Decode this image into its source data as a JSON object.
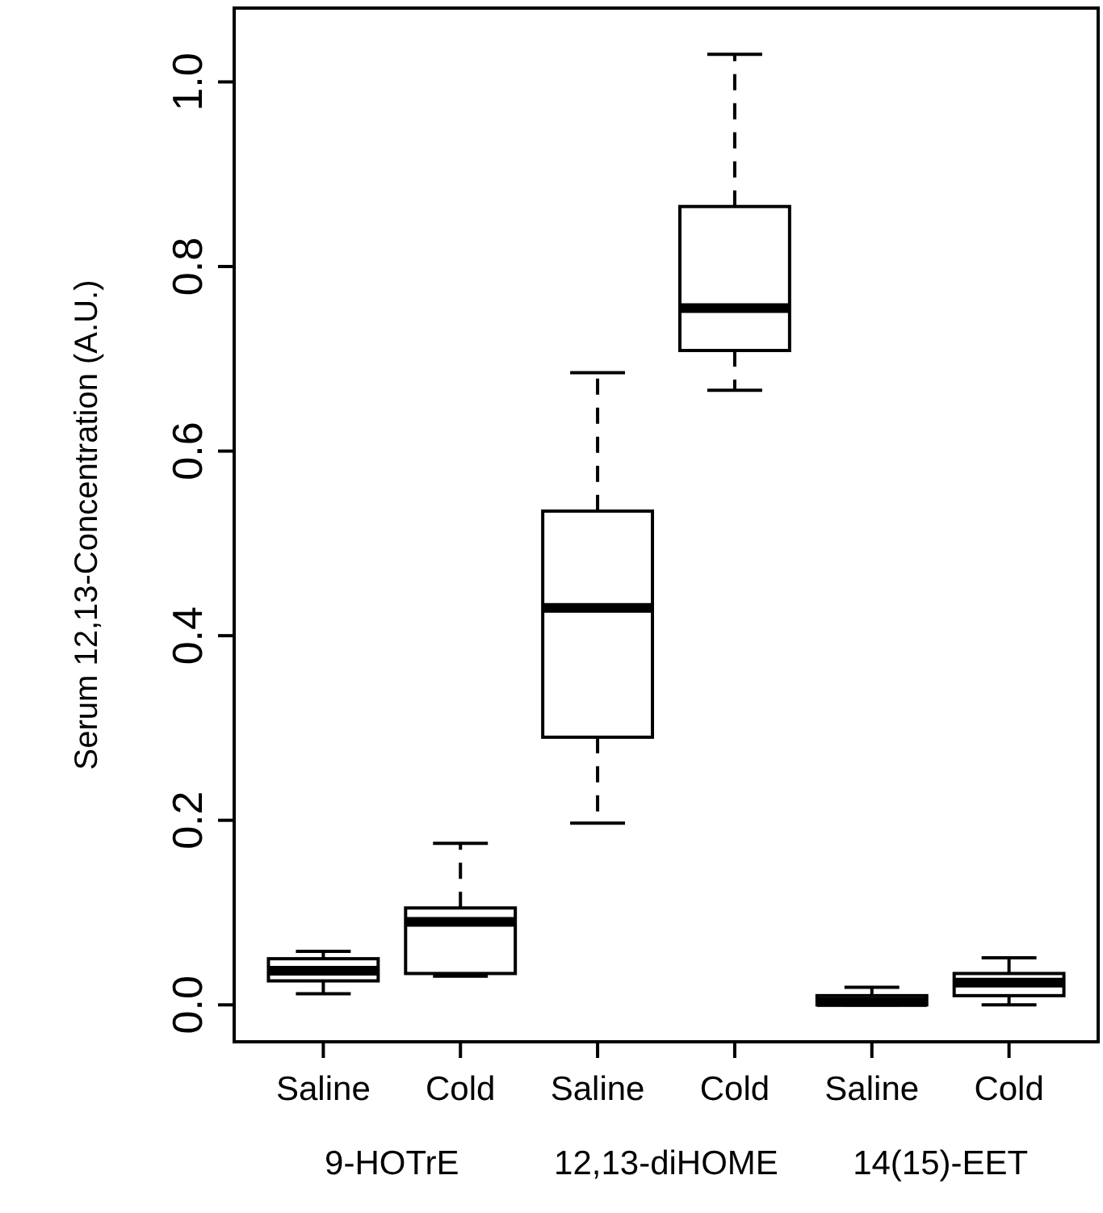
{
  "chart_data": {
    "type": "box",
    "ylabel": "Serum 12,13-Concentration (A.U.)",
    "categories": [
      "Saline",
      "Cold",
      "Saline",
      "Cold",
      "Saline",
      "Cold"
    ],
    "boxes": [
      {
        "low": 0.012,
        "q1": 0.026,
        "median": 0.037,
        "q3": 0.05,
        "high": 0.058
      },
      {
        "low": 0.031,
        "q1": 0.034,
        "median": 0.09,
        "q3": 0.105,
        "high": 0.175
      },
      {
        "low": 0.197,
        "q1": 0.29,
        "median": 0.43,
        "q3": 0.535,
        "high": 0.685
      },
      {
        "low": 0.666,
        "q1": 0.709,
        "median": 0.755,
        "q3": 0.865,
        "high": 1.03
      },
      {
        "low": 0.0,
        "q1": 0.0,
        "median": 0.003,
        "q3": 0.01,
        "high": 0.019
      },
      {
        "low": 0.0,
        "q1": 0.01,
        "median": 0.024,
        "q3": 0.034,
        "high": 0.051
      }
    ],
    "annotations": [
      "9-HOTrE",
      "12,13-diHOME",
      "14(15)-EET"
    ],
    "ylim": [
      -0.04,
      1.08
    ],
    "yticks": [
      {
        "value": 0,
        "label": "0.0"
      },
      0.2,
      0.4,
      0.6,
      0.8,
      {
        "value": 1,
        "label": "1.0"
      }
    ],
    "line_style": "dashed",
    "grid": false
  }
}
